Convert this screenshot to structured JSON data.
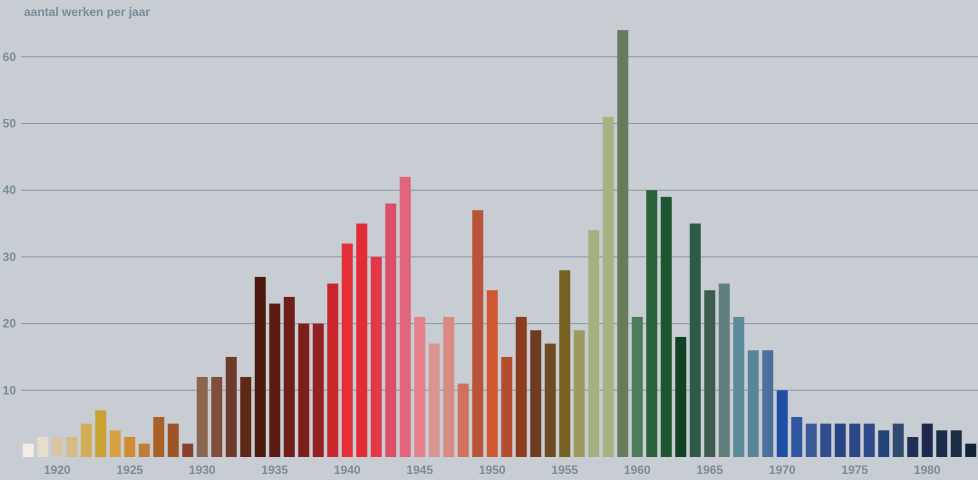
{
  "chart_data": {
    "type": "bar",
    "ylabel": "aantal werken per jaar",
    "xlabel": "",
    "ylim": [
      0,
      65
    ],
    "yticks": [
      10,
      20,
      30,
      40,
      50,
      60
    ],
    "xticks": [
      "1920",
      "1925",
      "1930",
      "1935",
      "1940",
      "1945",
      "1950",
      "1955",
      "1960",
      "1965",
      "1970",
      "1975",
      "1980"
    ],
    "grid": true,
    "years": [
      1918,
      1919,
      1920,
      1921,
      1922,
      1923,
      1924,
      1925,
      1926,
      1927,
      1928,
      1929,
      1930,
      1931,
      1932,
      1933,
      1934,
      1935,
      1936,
      1937,
      1938,
      1939,
      1940,
      1941,
      1942,
      1943,
      1944,
      1945,
      1946,
      1947,
      1948,
      1949,
      1950,
      1951,
      1952,
      1953,
      1954,
      1955,
      1956,
      1957,
      1958,
      1959,
      1960,
      1961,
      1962,
      1963,
      1964,
      1965,
      1966,
      1967,
      1968,
      1969,
      1970,
      1971,
      1972,
      1973,
      1974,
      1975,
      1976,
      1977,
      1978,
      1979,
      1980,
      1981,
      1982,
      1983
    ],
    "values": [
      2,
      3,
      3,
      3,
      5,
      7,
      4,
      3,
      2,
      6,
      5,
      2,
      12,
      12,
      15,
      12,
      27,
      23,
      24,
      20,
      20,
      26,
      32,
      35,
      30,
      38,
      42,
      21,
      17,
      21,
      11,
      37,
      25,
      15,
      21,
      19,
      17,
      28,
      19,
      34,
      51,
      64,
      21,
      40,
      39,
      18,
      35,
      25,
      26,
      21,
      16,
      16,
      10,
      6,
      5,
      5,
      5,
      5,
      5,
      4,
      5,
      3,
      5,
      4,
      4,
      2
    ],
    "colors": [
      "#f2ede6",
      "#e7dccb",
      "#d9c6a4",
      "#d6bb87",
      "#d4ad58",
      "#c9a232",
      "#d8a242",
      "#d18b33",
      "#c07d38",
      "#a96127",
      "#9e5424",
      "#87402a",
      "#8a6651",
      "#7e4d3b",
      "#6e3a2b",
      "#5e2716",
      "#4b180c",
      "#5e1b12",
      "#6e1d17",
      "#7d1e1a",
      "#932022",
      "#c8262b",
      "#e52e35",
      "#e22d36",
      "#e23848",
      "#db4e6a",
      "#e0647d",
      "#e57f89",
      "#d89591",
      "#d88a83",
      "#d2705e",
      "#b9533a",
      "#d0572f",
      "#b34b2d",
      "#8b3c1c",
      "#6d3c1e",
      "#6d4a22",
      "#766122",
      "#9c9a5f",
      "#a6b182",
      "#a8b283",
      "#687b5a",
      "#4c7c58",
      "#29613b",
      "#1d5631",
      "#124224",
      "#2f5b46",
      "#3d5c4e",
      "#5f7e7c",
      "#5b8a9b",
      "#5a8599",
      "#4e6e9d",
      "#1e4fa3",
      "#2f57a0",
      "#3a5a97",
      "#324d8e",
      "#2a4385",
      "#2b4786",
      "#2c4a8c",
      "#244477",
      "#2f4a6f",
      "#1f3057",
      "#1e2851",
      "#1b2b4a",
      "#1a2d45",
      "#132236"
    ]
  }
}
